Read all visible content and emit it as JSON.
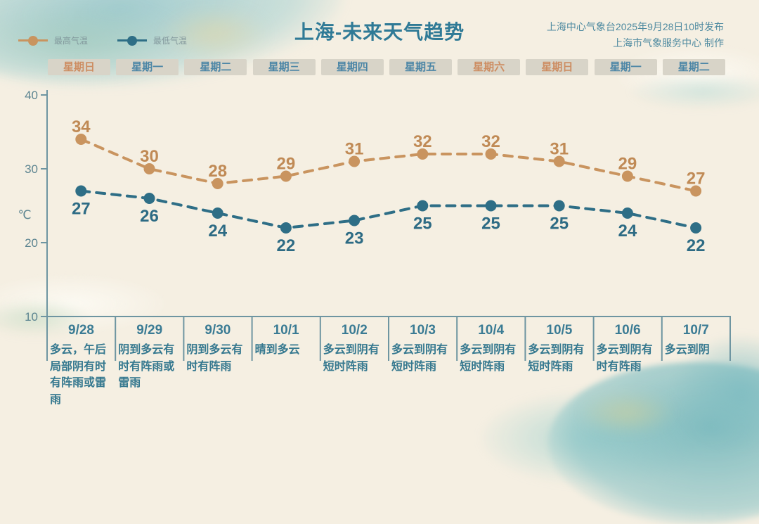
{
  "header": {
    "title": "上海-未来天气趋势",
    "source_line1": "上海中心气象台2025年9月28日10时发布",
    "source_line2": "上海市气象服务中心 制作"
  },
  "legend": [
    {
      "label": "最高气温",
      "color": "#c9945f"
    },
    {
      "label": "最低气温",
      "color": "#2e6e86"
    }
  ],
  "weekdays": [
    {
      "label": "星期日",
      "weekend": true
    },
    {
      "label": "星期一",
      "weekend": false
    },
    {
      "label": "星期二",
      "weekend": false
    },
    {
      "label": "星期三",
      "weekend": false
    },
    {
      "label": "星期四",
      "weekend": false
    },
    {
      "label": "星期五",
      "weekend": false
    },
    {
      "label": "星期六",
      "weekend": true
    },
    {
      "label": "星期日",
      "weekend": true
    },
    {
      "label": "星期一",
      "weekend": false
    },
    {
      "label": "星期二",
      "weekend": false
    }
  ],
  "chart_data": {
    "type": "line",
    "x": [
      "9/28",
      "9/29",
      "9/30",
      "10/1",
      "10/2",
      "10/3",
      "10/4",
      "10/5",
      "10/6",
      "10/7"
    ],
    "series": [
      {
        "name": "最高气温",
        "color": "#c9945f",
        "label_color": "#c08a55",
        "values": [
          34,
          30,
          28,
          29,
          31,
          32,
          32,
          31,
          29,
          27
        ]
      },
      {
        "name": "最低气温",
        "color": "#2e6e86",
        "label_color": "#2d6b84",
        "values": [
          27,
          26,
          24,
          22,
          23,
          25,
          25,
          25,
          24,
          22
        ]
      }
    ],
    "ylabel": "℃",
    "yticks": [
      10,
      20,
      30,
      40
    ],
    "ylim": [
      10,
      40
    ],
    "grid": false,
    "legend_position": "top-left",
    "line_style": "dashed",
    "title": "上海-未来天气趋势"
  },
  "forecast": [
    {
      "date": "9/28",
      "text": "多云，午后局部阴有时有阵雨或雷雨"
    },
    {
      "date": "9/29",
      "text": "阴到多云有时有阵雨或雷雨"
    },
    {
      "date": "9/30",
      "text": "阴到多云有时有阵雨"
    },
    {
      "date": "10/1",
      "text": "晴到多云"
    },
    {
      "date": "10/2",
      "text": "多云到阴有短时阵雨"
    },
    {
      "date": "10/3",
      "text": "多云到阴有短时阵雨"
    },
    {
      "date": "10/4",
      "text": "多云到阴有短时阵雨"
    },
    {
      "date": "10/5",
      "text": "多云到阴有短时阵雨"
    },
    {
      "date": "10/6",
      "text": "多云到阴有时有阵雨"
    },
    {
      "date": "10/7",
      "text": "多云到阴"
    }
  ],
  "colors": {
    "background": "#f5efe2",
    "max_temp": "#c9945f",
    "min_temp": "#2e6e86",
    "title_text": "#2f7a96",
    "axis": "#6e95a1",
    "tick_label": "#5d8591",
    "weekday_text": "#4c86a6",
    "weekend_text": "#cd8d62",
    "chip_background": "#d8d4c8",
    "forecast_text": "#35788f"
  }
}
